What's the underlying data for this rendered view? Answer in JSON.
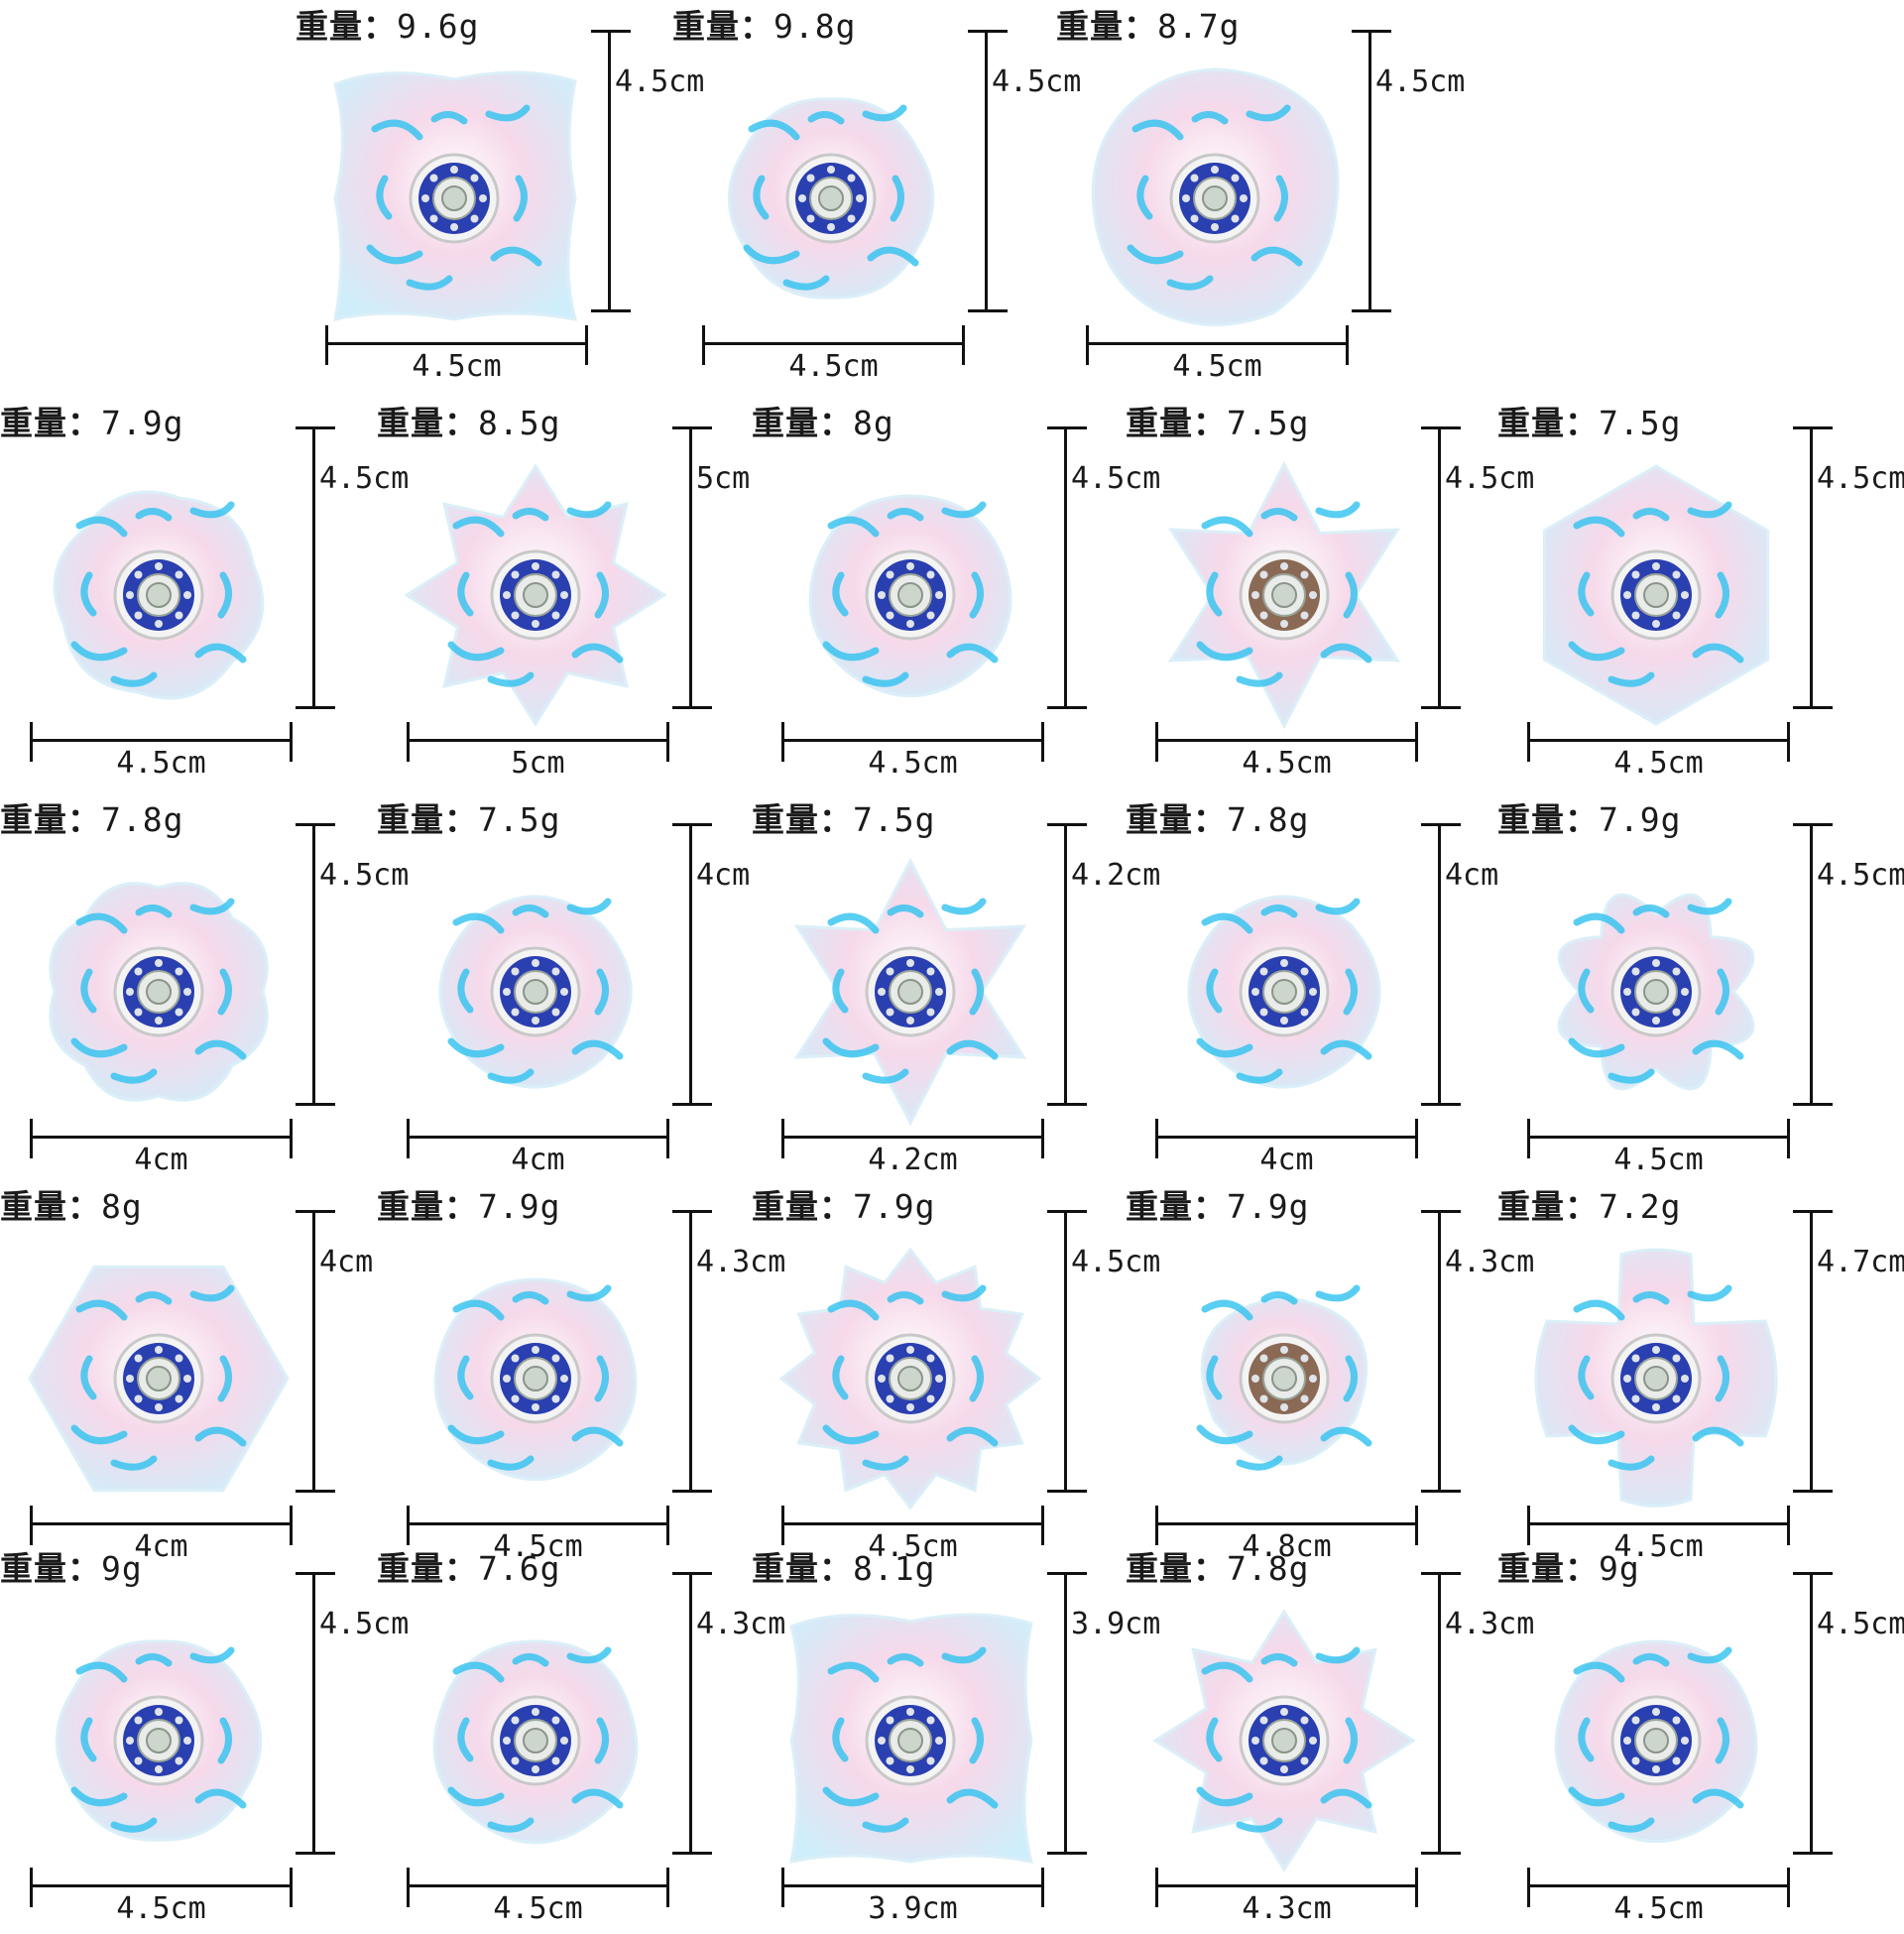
{
  "weight_label": "重量：",
  "colors": {
    "iridescent_pink": "#f6d9ea",
    "turquoise": "#2fc2ef",
    "bearing_blue": "#2a3fb0",
    "bearing_bronze": "#8a6a55"
  },
  "items": [
    {
      "weight": "9.6g",
      "width": "4.5cm",
      "height": "4.5cm",
      "shape": "square-wavy",
      "bearing": "blue"
    },
    {
      "weight": "9.8g",
      "width": "4.5cm",
      "height": "4.5cm",
      "shape": "flower-6",
      "bearing": "blue"
    },
    {
      "weight": "8.7g",
      "width": "4.5cm",
      "height": "4.5cm",
      "shape": "round",
      "bearing": "blue"
    },
    {
      "weight": "7.9g",
      "width": "4.5cm",
      "height": "4.5cm",
      "shape": "pinwheel",
      "bearing": "blue"
    },
    {
      "weight": "8.5g",
      "width": "5cm",
      "height": "5cm",
      "shape": "star-8",
      "bearing": "blue"
    },
    {
      "weight": "8g",
      "width": "4.5cm",
      "height": "4.5cm",
      "shape": "flower-5",
      "bearing": "blue"
    },
    {
      "weight": "7.5g",
      "width": "4.5cm",
      "height": "4.5cm",
      "shape": "star-6",
      "bearing": "bronze"
    },
    {
      "weight": "7.5g",
      "width": "4.5cm",
      "height": "4.5cm",
      "shape": "hexagon",
      "bearing": "blue"
    },
    {
      "weight": "7.8g",
      "width": "4cm",
      "height": "4.5cm",
      "shape": "flower-8",
      "bearing": "blue"
    },
    {
      "weight": "7.5g",
      "width": "4cm",
      "height": "4cm",
      "shape": "clover-4",
      "bearing": "blue"
    },
    {
      "weight": "7.5g",
      "width": "4.2cm",
      "height": "4.2cm",
      "shape": "star-6",
      "bearing": "blue"
    },
    {
      "weight": "7.8g",
      "width": "4cm",
      "height": "4cm",
      "shape": "clover-4",
      "bearing": "blue"
    },
    {
      "weight": "7.9g",
      "width": "4.5cm",
      "height": "4.5cm",
      "shape": "daisy-8",
      "bearing": "blue"
    },
    {
      "weight": "8g",
      "width": "4cm",
      "height": "4cm",
      "shape": "hexagon-flat",
      "bearing": "blue"
    },
    {
      "weight": "7.9g",
      "width": "4.5cm",
      "height": "4.3cm",
      "shape": "flower-5",
      "bearing": "blue"
    },
    {
      "weight": "7.9g",
      "width": "4.5cm",
      "height": "4.5cm",
      "shape": "gear",
      "bearing": "blue"
    },
    {
      "weight": "7.9g",
      "width": "4.8cm",
      "height": "4.3cm",
      "shape": "trilobe",
      "bearing": "bronze"
    },
    {
      "weight": "7.2g",
      "width": "4.5cm",
      "height": "4.7cm",
      "shape": "cross",
      "bearing": "blue"
    },
    {
      "weight": "9g",
      "width": "4.5cm",
      "height": "4.5cm",
      "shape": "flower-6",
      "bearing": "blue"
    },
    {
      "weight": "7.6g",
      "width": "4.5cm",
      "height": "4.3cm",
      "shape": "notched-5",
      "bearing": "blue"
    },
    {
      "weight": "8.1g",
      "width": "3.9cm",
      "height": "3.9cm",
      "shape": "square-wavy",
      "bearing": "blue"
    },
    {
      "weight": "7.8g",
      "width": "4.3cm",
      "height": "4.3cm",
      "shape": "star-8",
      "bearing": "blue"
    },
    {
      "weight": "9g",
      "width": "4.5cm",
      "height": "4.5cm",
      "shape": "flower-5",
      "bearing": "blue"
    }
  ]
}
